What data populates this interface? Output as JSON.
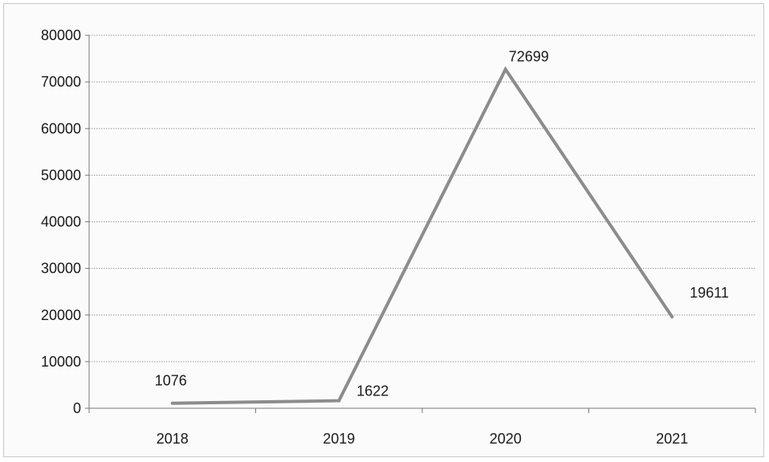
{
  "chart_data": {
    "type": "line",
    "categories": [
      "2018",
      "2019",
      "2020",
      "2021"
    ],
    "series": [
      {
        "values": [
          1076,
          1622,
          72699,
          19611
        ]
      }
    ],
    "data_labels": [
      "1076",
      "1622",
      "72699",
      "19611"
    ],
    "y_ticks": [
      "0",
      "10000",
      "20000",
      "30000",
      "40000",
      "50000",
      "60000",
      "70000",
      "80000"
    ],
    "ylim": [
      0,
      80000
    ],
    "grid": true,
    "legend": "none",
    "line_color": "#8c8c8c",
    "grid_color": "#9a9a9a"
  }
}
